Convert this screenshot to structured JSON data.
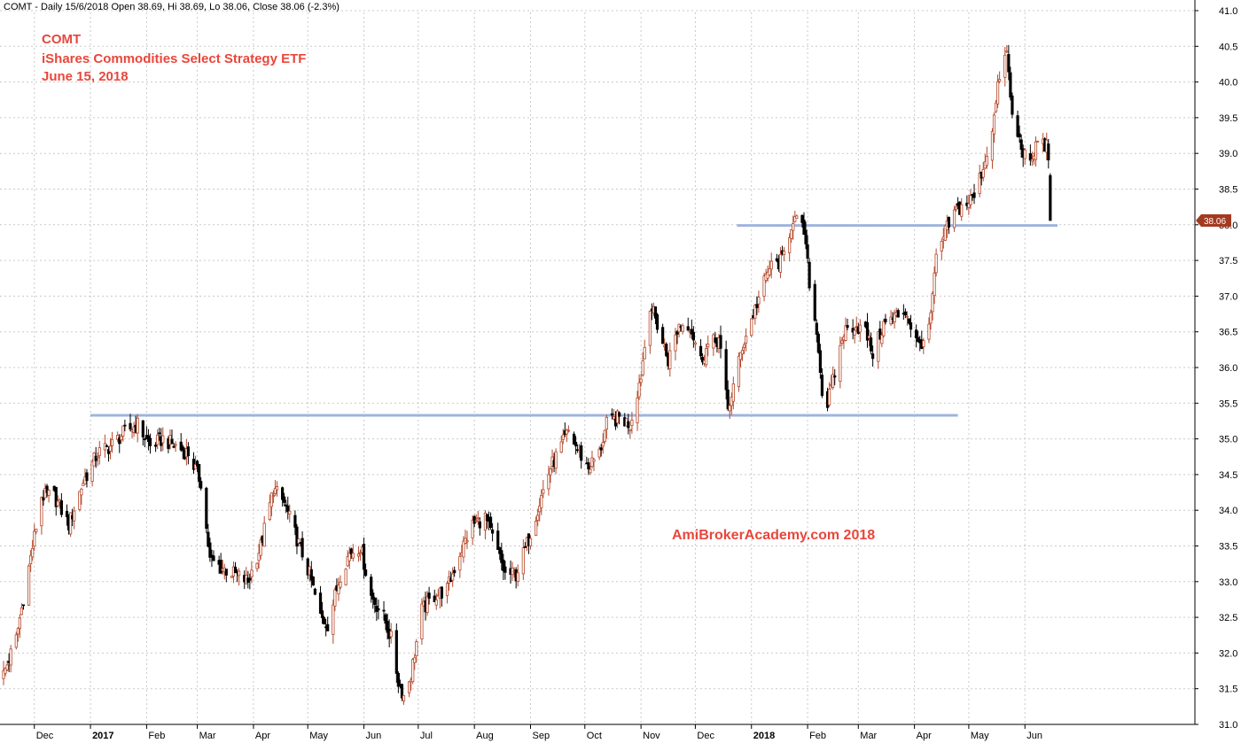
{
  "header": {
    "info_line": "COMT - Daily 15/6/2018 Open 38.69, Hi 38.69, Lo 38.06, Close 38.06 (-2.3%)"
  },
  "titles": {
    "symbol": "COMT",
    "name": "iShares Commodities Select Strategy ETF",
    "date": "June  15, 2018"
  },
  "watermark": "AmiBrokerAcademy.com  2018",
  "colors": {
    "title": "#e8473c",
    "up_candle": "#b5482a",
    "down_candle": "#000000",
    "trendline": "#9fb4de",
    "price_tag": "#a33a20",
    "grid": "#c9c9c9"
  },
  "chart_data": {
    "type": "candlestick",
    "symbol": "COMT",
    "ylim": [
      31.0,
      41.0
    ],
    "y_ticks": [
      "31.0",
      "31.5",
      "32.0",
      "32.5",
      "33.0",
      "33.5",
      "34.0",
      "34.5",
      "35.0",
      "35.5",
      "36.0",
      "36.5",
      "37.0",
      "37.5",
      "38.0",
      "38.5",
      "39.0",
      "39.5",
      "40.0",
      "40.5",
      "41.0"
    ],
    "x_range": [
      "2016-11-14",
      "2018-07-12"
    ],
    "x_ticks": [
      {
        "label": "Dec",
        "date": "2016-12-01",
        "bold": false
      },
      {
        "label": "2017",
        "date": "2017-01-01",
        "bold": true
      },
      {
        "label": "Feb",
        "date": "2017-02-01",
        "bold": false
      },
      {
        "label": "Mar",
        "date": "2017-03-01",
        "bold": false
      },
      {
        "label": "Apr",
        "date": "2017-04-01",
        "bold": false
      },
      {
        "label": "May",
        "date": "2017-05-01",
        "bold": false
      },
      {
        "label": "Jun",
        "date": "2017-06-01",
        "bold": false
      },
      {
        "label": "Jul",
        "date": "2017-07-01",
        "bold": false
      },
      {
        "label": "Aug",
        "date": "2017-08-01",
        "bold": false
      },
      {
        "label": "Sep",
        "date": "2017-09-01",
        "bold": false
      },
      {
        "label": "Oct",
        "date": "2017-10-01",
        "bold": false
      },
      {
        "label": "Nov",
        "date": "2017-11-01",
        "bold": false
      },
      {
        "label": "Dec",
        "date": "2017-12-01",
        "bold": false
      },
      {
        "label": "2018",
        "date": "2018-01-01",
        "bold": true
      },
      {
        "label": "Feb",
        "date": "2018-02-01",
        "bold": false
      },
      {
        "label": "Mar",
        "date": "2018-03-01",
        "bold": false
      },
      {
        "label": "Apr",
        "date": "2018-04-01",
        "bold": false
      },
      {
        "label": "May",
        "date": "2018-05-01",
        "bold": false
      },
      {
        "label": "Jun",
        "date": "2018-06-01",
        "bold": false
      }
    ],
    "close_keypoints": [
      [
        "2016-11-14",
        31.7
      ],
      [
        "2016-11-21",
        32.2
      ],
      [
        "2016-11-28",
        33.2
      ],
      [
        "2016-12-05",
        34.2
      ],
      [
        "2016-12-12",
        34.2
      ],
      [
        "2016-12-20",
        33.8
      ],
      [
        "2016-12-28",
        34.4
      ],
      [
        "2017-01-05",
        34.8
      ],
      [
        "2017-01-12",
        34.9
      ],
      [
        "2017-01-20",
        35.1
      ],
      [
        "2017-01-27",
        35.2
      ],
      [
        "2017-02-03",
        34.9
      ],
      [
        "2017-02-10",
        35.0
      ],
      [
        "2017-02-17",
        34.9
      ],
      [
        "2017-02-24",
        34.8
      ],
      [
        "2017-03-03",
        34.4
      ],
      [
        "2017-03-08",
        33.3
      ],
      [
        "2017-03-14",
        33.2
      ],
      [
        "2017-03-22",
        33.1
      ],
      [
        "2017-03-29",
        33.0
      ],
      [
        "2017-04-05",
        33.5
      ],
      [
        "2017-04-12",
        34.3
      ],
      [
        "2017-04-18",
        34.1
      ],
      [
        "2017-04-25",
        33.6
      ],
      [
        "2017-05-02",
        33.1
      ],
      [
        "2017-05-08",
        32.5
      ],
      [
        "2017-05-12",
        32.4
      ],
      [
        "2017-05-19",
        33.1
      ],
      [
        "2017-05-24",
        33.4
      ],
      [
        "2017-05-30",
        33.5
      ],
      [
        "2017-06-05",
        32.8
      ],
      [
        "2017-06-12",
        32.5
      ],
      [
        "2017-06-16",
        32.2
      ],
      [
        "2017-06-20",
        31.6
      ],
      [
        "2017-06-23",
        31.4
      ],
      [
        "2017-06-27",
        31.7
      ],
      [
        "2017-07-03",
        32.6
      ],
      [
        "2017-07-10",
        32.8
      ],
      [
        "2017-07-17",
        32.9
      ],
      [
        "2017-07-24",
        33.4
      ],
      [
        "2017-07-31",
        33.8
      ],
      [
        "2017-08-07",
        33.9
      ],
      [
        "2017-08-14",
        33.4
      ],
      [
        "2017-08-18",
        33.1
      ],
      [
        "2017-08-24",
        33.1
      ],
      [
        "2017-08-31",
        33.6
      ],
      [
        "2017-09-07",
        34.2
      ],
      [
        "2017-09-12",
        34.6
      ],
      [
        "2017-09-18",
        34.9
      ],
      [
        "2017-09-22",
        35.1
      ],
      [
        "2017-09-28",
        34.8
      ],
      [
        "2017-10-03",
        34.6
      ],
      [
        "2017-10-09",
        34.8
      ],
      [
        "2017-10-13",
        35.2
      ],
      [
        "2017-10-20",
        35.3
      ],
      [
        "2017-10-26",
        35.2
      ],
      [
        "2017-11-01",
        35.9
      ],
      [
        "2017-11-06",
        36.9
      ],
      [
        "2017-11-10",
        36.6
      ],
      [
        "2017-11-16",
        36.1
      ],
      [
        "2017-11-22",
        36.6
      ],
      [
        "2017-11-28",
        36.6
      ],
      [
        "2017-12-04",
        36.1
      ],
      [
        "2017-12-08",
        36.3
      ],
      [
        "2017-12-14",
        36.4
      ],
      [
        "2017-12-19",
        35.4
      ],
      [
        "2017-12-27",
        36.3
      ],
      [
        "2018-01-04",
        36.9
      ],
      [
        "2018-01-11",
        37.4
      ],
      [
        "2018-01-18",
        37.5
      ],
      [
        "2018-01-24",
        38.1
      ],
      [
        "2018-01-30",
        37.9
      ],
      [
        "2018-02-02",
        37.2
      ],
      [
        "2018-02-07",
        36.3
      ],
      [
        "2018-02-10",
        35.3
      ],
      [
        "2018-02-15",
        35.8
      ],
      [
        "2018-02-21",
        36.5
      ],
      [
        "2018-02-27",
        36.6
      ],
      [
        "2018-03-05",
        36.5
      ],
      [
        "2018-03-09",
        36.2
      ],
      [
        "2018-03-15",
        36.6
      ],
      [
        "2018-03-21",
        36.7
      ],
      [
        "2018-03-27",
        36.8
      ],
      [
        "2018-04-03",
        36.3
      ],
      [
        "2018-04-09",
        36.5
      ],
      [
        "2018-04-13",
        37.5
      ],
      [
        "2018-04-18",
        37.9
      ],
      [
        "2018-04-24",
        38.2
      ],
      [
        "2018-04-30",
        38.3
      ],
      [
        "2018-05-04",
        38.4
      ],
      [
        "2018-05-10",
        38.9
      ],
      [
        "2018-05-15",
        39.5
      ],
      [
        "2018-05-18",
        40.1
      ],
      [
        "2018-05-22",
        40.4
      ],
      [
        "2018-05-25",
        39.5
      ],
      [
        "2018-05-30",
        39.1
      ],
      [
        "2018-06-04",
        38.8
      ],
      [
        "2018-06-08",
        39.2
      ],
      [
        "2018-06-13",
        39.1
      ],
      [
        "2018-06-14",
        38.96
      ],
      [
        "2018-06-15",
        38.06
      ]
    ],
    "trendlines": [
      {
        "y": 35.33,
        "from": "2017-01-01",
        "to": "2018-04-25"
      },
      {
        "y": 37.99,
        "from": "2017-12-24",
        "to": "2018-06-19"
      }
    ],
    "last_price": {
      "label": "38.06",
      "value": 38.06
    }
  }
}
